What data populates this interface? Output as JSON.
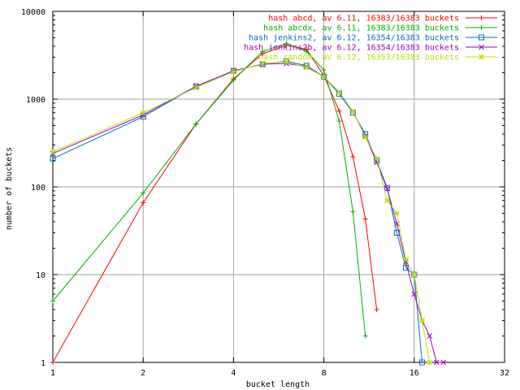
{
  "chart_data": {
    "type": "line",
    "xlabel": "bucket length",
    "ylabel": "number of buckets",
    "x_scale": "log2",
    "y_scale": "log10",
    "xlim": [
      1,
      32
    ],
    "ylim": [
      1,
      10000
    ],
    "x_ticks": [
      1,
      2,
      4,
      8,
      16,
      32
    ],
    "y_ticks": [
      1,
      10,
      100,
      1000,
      10000
    ],
    "grid": true,
    "legend_position": "top-right",
    "series": [
      {
        "name": "hash abcd, av 6.11, 16383/16383 buckets",
        "color": "#ff0000",
        "marker": "plus",
        "points": [
          [
            1,
            1
          ],
          [
            2,
            66
          ],
          [
            3,
            520
          ],
          [
            4,
            1700
          ],
          [
            5,
            3300
          ],
          [
            6,
            4100
          ],
          [
            7,
            3700
          ],
          [
            8,
            1850
          ],
          [
            9,
            730
          ],
          [
            10,
            220
          ],
          [
            11,
            43
          ],
          [
            12,
            4
          ]
        ]
      },
      {
        "name": "hash abcdx, av 6.11, 16383/16383 buckets",
        "color": "#00b000",
        "marker": "plus",
        "points": [
          [
            1,
            5
          ],
          [
            2,
            85
          ],
          [
            3,
            520
          ],
          [
            4,
            1650
          ],
          [
            5,
            3500
          ],
          [
            6,
            4300
          ],
          [
            7,
            3500
          ],
          [
            8,
            2150
          ],
          [
            9,
            560
          ],
          [
            10,
            52
          ],
          [
            11,
            2
          ]
        ]
      },
      {
        "name": "hash jenkins2, av 6.12, 16354/16383 buckets",
        "color": "#0070c0",
        "marker": "box",
        "points": [
          [
            1,
            210
          ],
          [
            2,
            630
          ],
          [
            3,
            1400
          ],
          [
            4,
            2100
          ],
          [
            5,
            2500
          ],
          [
            6,
            2700
          ],
          [
            7,
            2400
          ],
          [
            8,
            1800
          ],
          [
            9,
            1150
          ],
          [
            10,
            700
          ],
          [
            11,
            400
          ],
          [
            12,
            200
          ],
          [
            13,
            97
          ],
          [
            14,
            30
          ],
          [
            15,
            12
          ],
          [
            16,
            10
          ],
          [
            17,
            1
          ]
        ]
      },
      {
        "name": "hash jenkins2b, av 6.12, 16354/16383 buckets",
        "color": "#a000c0",
        "marker": "cross",
        "points": [
          [
            1,
            240
          ],
          [
            2,
            660
          ],
          [
            3,
            1400
          ],
          [
            4,
            2100
          ],
          [
            5,
            2500
          ],
          [
            6,
            2550
          ],
          [
            7,
            2350
          ],
          [
            8,
            1800
          ],
          [
            9,
            1200
          ],
          [
            10,
            720
          ],
          [
            11,
            380
          ],
          [
            12,
            190
          ],
          [
            13,
            95
          ],
          [
            14,
            38
          ],
          [
            15,
            14
          ],
          [
            16,
            6
          ],
          [
            17,
            3
          ],
          [
            18,
            2
          ],
          [
            19,
            1
          ],
          [
            20,
            1
          ]
        ]
      },
      {
        "name": "hash random, av 6.12, 16353/16383 buckets",
        "color": "#b8e000",
        "marker": "star",
        "points": [
          [
            1,
            250
          ],
          [
            2,
            700
          ],
          [
            3,
            1350
          ],
          [
            4,
            2050
          ],
          [
            5,
            2550
          ],
          [
            6,
            2650
          ],
          [
            7,
            2300
          ],
          [
            8,
            1800
          ],
          [
            9,
            1200
          ],
          [
            10,
            720
          ],
          [
            11,
            370
          ],
          [
            12,
            210
          ],
          [
            13,
            70
          ],
          [
            14,
            50
          ],
          [
            15,
            15
          ],
          [
            16,
            10
          ],
          [
            17,
            3
          ],
          [
            18,
            1
          ]
        ]
      }
    ]
  }
}
